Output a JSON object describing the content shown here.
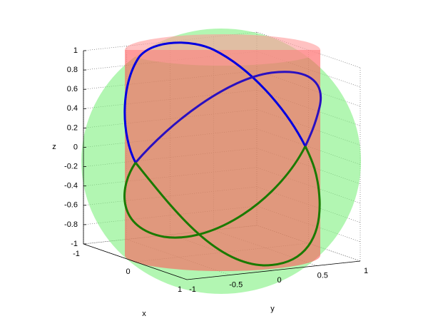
{
  "chart_data": {
    "type": "surface3d",
    "xlabel": "x",
    "ylabel": "y",
    "zlabel": "z",
    "xlim": [
      -1,
      1
    ],
    "ylim": [
      -1,
      1
    ],
    "zlim": [
      -1,
      1
    ],
    "xticks": [
      -1,
      0,
      1
    ],
    "yticks": [
      -1,
      -0.5,
      0,
      0.5,
      1
    ],
    "zticks": [
      -1,
      -0.8,
      -0.6,
      -0.4,
      -0.2,
      0,
      0.2,
      0.4,
      0.6,
      0.8,
      1
    ],
    "grid": true
  }
}
